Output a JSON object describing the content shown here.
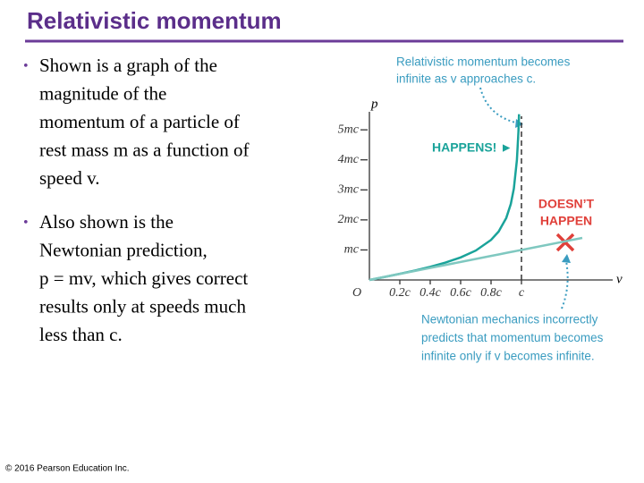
{
  "title": "Relativistic momentum",
  "bullets": [
    {
      "lines": [
        "Shown is a graph of the",
        "magnitude of the",
        "momentum of a particle of",
        "rest mass m as a function of",
        "speed v."
      ]
    },
    {
      "lines": [
        "Also shown is the",
        "Newtonian prediction,",
        "p = mv, which gives correct",
        "results only at speeds much",
        "less than c."
      ]
    }
  ],
  "copyright": "© 2016 Pearson Education Inc.",
  "chart_data": {
    "type": "line",
    "xlabel": "v",
    "ylabel": "p",
    "x": [
      0,
      0.1,
      0.2,
      0.3,
      0.4,
      0.5,
      0.6,
      0.7,
      0.8,
      0.85,
      0.9,
      0.93,
      0.95,
      0.97,
      0.98,
      0.984,
      1.4
    ],
    "series": [
      {
        "color": "#1aa39a",
        "values": [
          0,
          0.1005,
          0.2041,
          0.3145,
          0.4364,
          0.5774,
          0.75,
          0.9802,
          1.3333,
          1.6136,
          2.0647,
          2.5306,
          3.0424,
          3.9904,
          4.9246,
          5.52,
          null
        ]
      },
      {
        "color": "#7fc8c0",
        "values": [
          0,
          0.1,
          0.2,
          0.3,
          0.4,
          0.5,
          0.6,
          0.7,
          0.8,
          0.85,
          0.9,
          0.93,
          0.95,
          0.97,
          0.98,
          0.984,
          1.4
        ]
      }
    ],
    "xlim": [
      0,
      1.6
    ],
    "ylim": [
      0,
      5.6
    ],
    "xticks": [
      {
        "value": 0,
        "label": "O"
      },
      {
        "value": 0.2,
        "label": "0.2c"
      },
      {
        "value": 0.4,
        "label": "0.4c"
      },
      {
        "value": 0.6,
        "label": "0.6c"
      },
      {
        "value": 0.8,
        "label": "0.8c"
      },
      {
        "value": 1,
        "label": "c"
      }
    ],
    "yticks": [
      {
        "value": 1,
        "label": "mc"
      },
      {
        "value": 2,
        "label": "2mc"
      },
      {
        "value": 3,
        "label": "3mc"
      },
      {
        "value": 4,
        "label": "4mc"
      },
      {
        "value": 5,
        "label": "5mc"
      }
    ],
    "annotation_top": [
      "Relativistic momentum becomes",
      "infinite as v approaches c."
    ],
    "happens": "HAPPENS! ►",
    "doesnt_happen": [
      "DOESN’T",
      "HAPPEN"
    ],
    "annotation_bottom": [
      "Newtonian mechanics incorrectly",
      "predicts that momentum becomes",
      "infinite only if v becomes infinite."
    ]
  }
}
